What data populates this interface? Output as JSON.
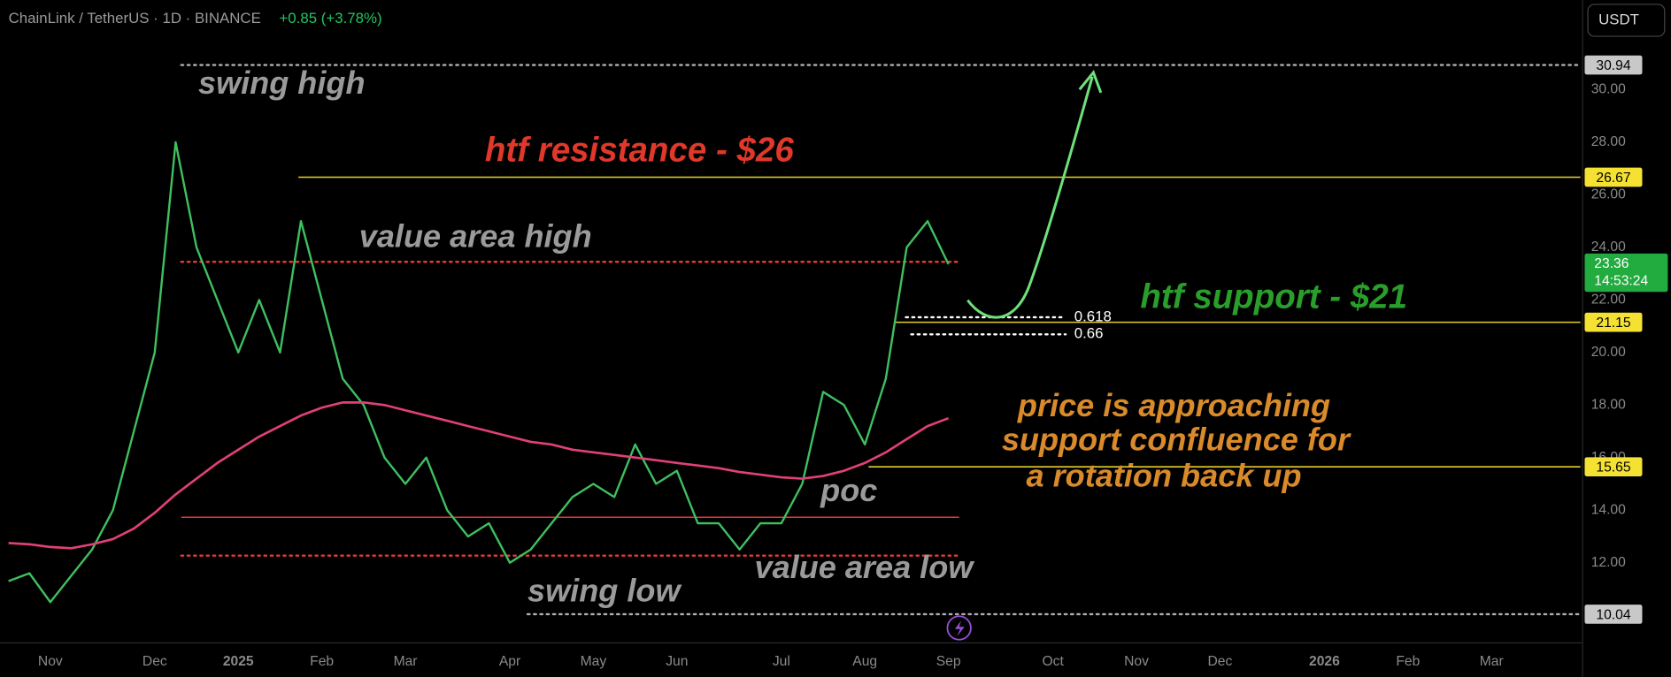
{
  "header": {
    "symbol": "ChainLink / TetherUS · 1D · BINANCE",
    "change": "+0.85 (+3.78%)"
  },
  "currency": "USDT",
  "chart_data": {
    "type": "line",
    "categories": [
      null,
      null,
      "Nov",
      null,
      null,
      null,
      null,
      "Dec",
      null,
      null,
      null,
      "2025",
      null,
      null,
      null,
      "Feb",
      null,
      null,
      null,
      "Mar",
      null,
      null,
      null,
      null,
      "Apr",
      null,
      null,
      null,
      "May",
      null,
      null,
      null,
      "Jun",
      null,
      null,
      null,
      null,
      "Jul",
      null,
      null,
      null,
      "Aug",
      null,
      null,
      null,
      "Sep",
      null,
      null,
      null,
      null,
      "Oct",
      null,
      null,
      null,
      "Nov",
      null,
      null,
      null,
      "Dec",
      null,
      null,
      null,
      null,
      "2026",
      null,
      null,
      null,
      "Feb",
      null,
      null,
      null,
      "Mar",
      null,
      null,
      null
    ],
    "series": [
      {
        "color": "#3fbf5f",
        "values": [
          11.3,
          11.6,
          10.5,
          11.5,
          12.5,
          14,
          17,
          20,
          28,
          24,
          22,
          20,
          22,
          20,
          25,
          22,
          19,
          18,
          16,
          15,
          16,
          14,
          13,
          13.5,
          12,
          12.5,
          13.5,
          14.5,
          15,
          14.5,
          16.5,
          15,
          15.5,
          13.5,
          13.5,
          12.5,
          13.5,
          13.5,
          15,
          18.5,
          18,
          16.5,
          19,
          24,
          25,
          23.36,
          null,
          null,
          null,
          null,
          null,
          null,
          null,
          null,
          null,
          null,
          null,
          null,
          null,
          null,
          null,
          null,
          null,
          null,
          null,
          null,
          null,
          null,
          null,
          null,
          null,
          null,
          null,
          null,
          null
        ]
      },
      {
        "color": "#e0407a",
        "values": [
          12.75,
          12.7,
          12.6,
          12.55,
          12.7,
          12.9,
          13.3,
          13.9,
          14.6,
          15.2,
          15.8,
          16.3,
          16.8,
          17.2,
          17.6,
          17.9,
          18.1,
          18.1,
          18.0,
          17.8,
          17.6,
          17.4,
          17.2,
          17.0,
          16.8,
          16.6,
          16.5,
          16.3,
          16.2,
          16.1,
          16.0,
          15.9,
          15.8,
          15.7,
          15.6,
          15.45,
          15.35,
          15.25,
          15.2,
          15.3,
          15.5,
          15.8,
          16.2,
          16.7,
          17.2,
          17.5,
          null,
          null,
          null,
          null,
          null,
          null,
          null,
          null,
          null,
          null,
          null,
          null,
          null,
          null,
          null,
          null,
          null,
          null,
          null,
          null,
          null,
          null,
          null,
          null,
          null,
          null,
          null,
          null,
          null
        ]
      }
    ],
    "ylim": [
      8.95,
      33.41
    ],
    "yticks": [
      {
        "value": 10,
        "label": "10.00"
      },
      {
        "value": 12,
        "label": "12.00"
      },
      {
        "value": 14,
        "label": "14.00"
      },
      {
        "value": 16,
        "label": "16.00"
      },
      {
        "value": 18,
        "label": "18.00"
      },
      {
        "value": 20,
        "label": "20.00"
      },
      {
        "value": 22,
        "label": "22.00"
      },
      {
        "value": 24,
        "label": "24.00"
      },
      {
        "value": 26,
        "label": "26.00"
      },
      {
        "value": 28,
        "label": "28.00"
      },
      {
        "value": 30,
        "label": "30.00"
      }
    ],
    "levels": [
      {
        "value": 30.94,
        "color": "#b0b0b0",
        "style": "dotted",
        "badge": true
      },
      {
        "value": 26.67,
        "color": "#e8cf2c",
        "style": "solid",
        "badge": true
      },
      {
        "value": 23.45,
        "color": "#e53935",
        "style": "dotted",
        "badge": false
      },
      {
        "value": 21.34,
        "color": "#ffffff",
        "style": "dotted",
        "badge": false
      },
      {
        "value": 21.15,
        "color": "#e8cf2c",
        "style": "solid",
        "badge": true
      },
      {
        "value": 20.69,
        "color": "#ffffff",
        "style": "dotted",
        "badge": false
      },
      {
        "value": 15.65,
        "color": "#e8cf2c",
        "style": "solid",
        "badge": true
      },
      {
        "value": 13.73,
        "color": "#e53935",
        "style": "solid",
        "badge": false
      },
      {
        "value": 12.27,
        "color": "#e53935",
        "style": "dotted",
        "badge": false
      },
      {
        "value": 10.04,
        "color": "#b0b0b0",
        "style": "dotted",
        "badge": true
      }
    ],
    "last_price": {
      "value": 23.36,
      "countdown": "14:53:24",
      "color": "#22ab3f"
    },
    "annotations": [
      {
        "text": "swing high",
        "color": "#9a9a9a"
      },
      {
        "text": "htf resistance - $26",
        "color": "#e0382a"
      },
      {
        "text": "value area high",
        "color": "#9a9a9a"
      },
      {
        "text": "htf support - $21",
        "color": "#2a9e2a"
      },
      {
        "text": "0.618",
        "color": "#ffffff"
      },
      {
        "text": "0.66",
        "color": "#ffffff"
      },
      {
        "text": "price is approaching",
        "color": "#d98a2b"
      },
      {
        "text": "support confluence for",
        "color": "#d98a2b"
      },
      {
        "text": "a rotation back up",
        "color": "#d98a2b"
      },
      {
        "text": "poc",
        "color": "#9a9a9a"
      },
      {
        "text": "value area low",
        "color": "#9a9a9a"
      },
      {
        "text": "swing low",
        "color": "#9a9a9a"
      }
    ]
  }
}
